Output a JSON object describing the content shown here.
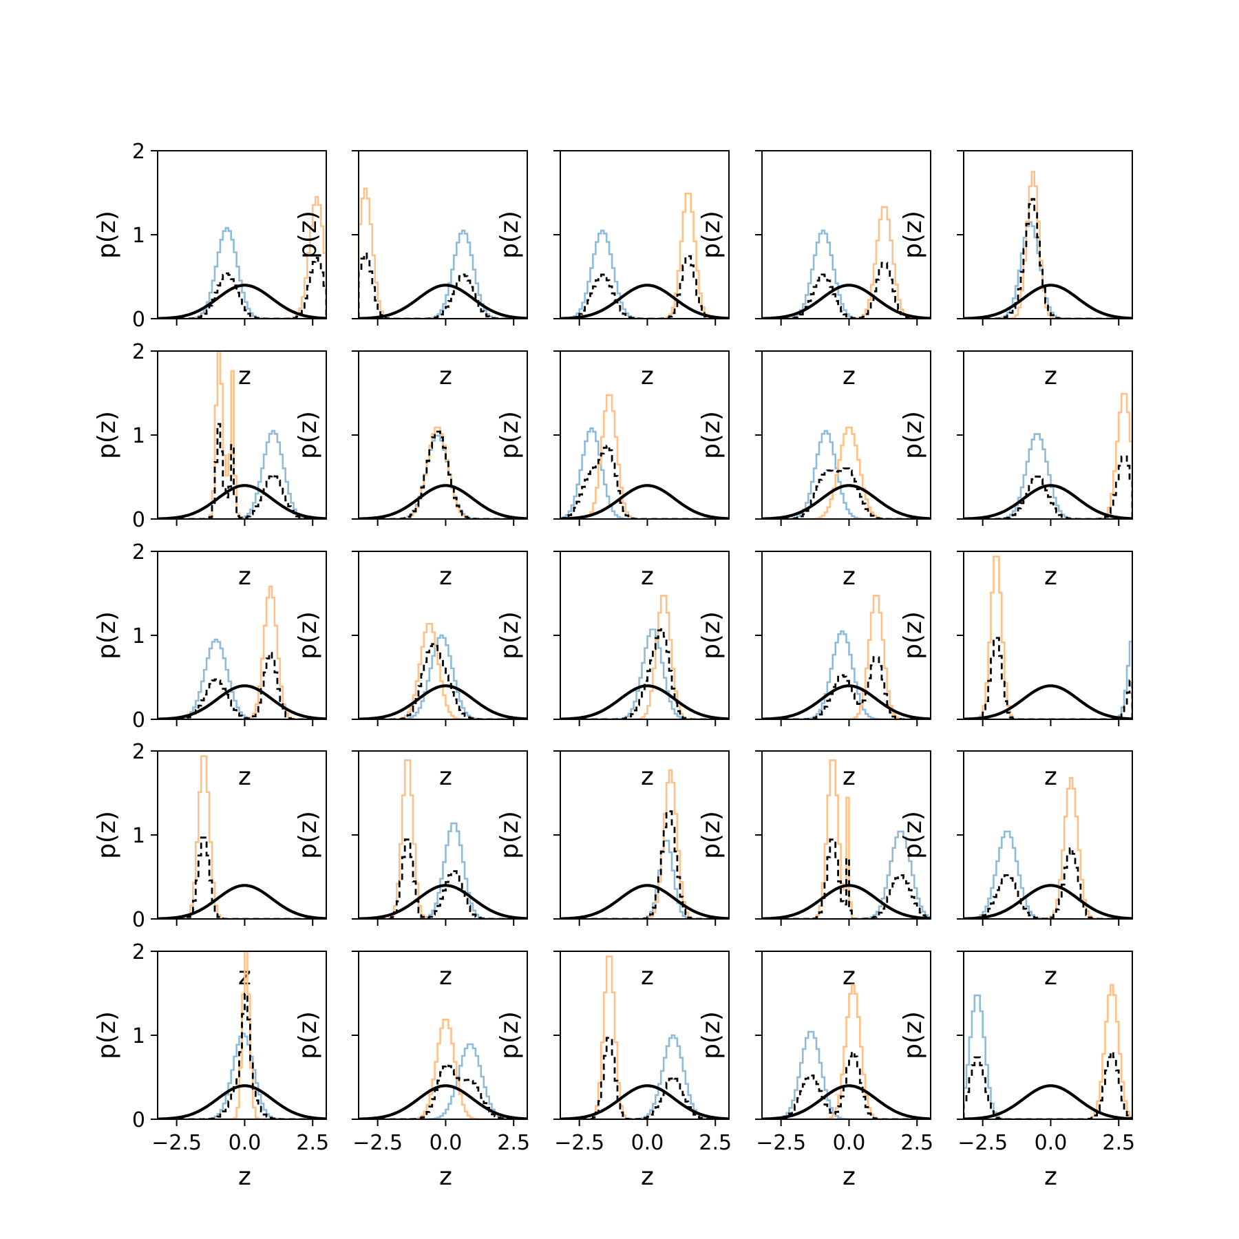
{
  "chart_data": {
    "type": "histogram-grid",
    "rows": 5,
    "cols": 5,
    "xlabel": "z",
    "ylabel": "p(z)",
    "xlim": [
      -3.2,
      3.0
    ],
    "ylim": [
      0,
      2
    ],
    "xticks": [
      -2.5,
      0.0,
      2.5
    ],
    "xtick_labels": [
      "−2.5",
      "0.0",
      "2.5"
    ],
    "yticks": [
      0,
      1,
      2
    ],
    "ytick_labels": [
      "0",
      "1",
      "2"
    ],
    "colors": {
      "blue": "#8fbbd9",
      "orange": "#ffbf86",
      "mix": "#000000",
      "normal": "#000000"
    },
    "series_styles": {
      "blue": "step histogram, light blue",
      "orange": "step histogram, light orange",
      "mix": "dashed black step histogram (average of blue and orange)",
      "normal": "solid black standard normal density"
    },
    "panels": [
      {
        "blue": [
          {
            "mu": -0.65,
            "sd": 0.38,
            "peak": 1.08
          }
        ],
        "orange": [
          {
            "mu": 2.65,
            "sd": 0.27,
            "peak": 1.45
          }
        ]
      },
      {
        "blue": [
          {
            "mu": 0.65,
            "sd": 0.37,
            "peak": 1.05
          }
        ],
        "orange": [
          {
            "mu": -2.95,
            "sd": 0.25,
            "peak": 1.55
          }
        ]
      },
      {
        "blue": [
          {
            "mu": -1.65,
            "sd": 0.38,
            "peak": 1.05
          }
        ],
        "orange": [
          {
            "mu": 1.5,
            "sd": 0.25,
            "peak": 1.52
          }
        ]
      },
      {
        "blue": [
          {
            "mu": -0.95,
            "sd": 0.37,
            "peak": 1.05
          }
        ],
        "orange": [
          {
            "mu": 1.3,
            "sd": 0.29,
            "peak": 1.35
          }
        ]
      },
      {
        "blue": [
          {
            "mu": -0.75,
            "sd": 0.34,
            "peak": 1.15
          }
        ],
        "orange": [
          {
            "mu": -0.65,
            "sd": 0.22,
            "peak": 1.75
          }
        ]
      },
      {
        "blue": [
          {
            "mu": 1.05,
            "sd": 0.38,
            "peak": 1.05
          }
        ],
        "orange": [
          {
            "mu": -0.95,
            "sd": 0.1,
            "peak": 2.0
          },
          {
            "mu": -0.45,
            "sd": 0.06,
            "peak": 1.5
          },
          {
            "mu": -0.7,
            "sd": 0.22,
            "peak": 0.5
          }
        ]
      },
      {
        "blue": [
          {
            "mu": -0.3,
            "sd": 0.4,
            "peak": 1.0
          }
        ],
        "orange": [
          {
            "mu": -0.3,
            "sd": 0.37,
            "peak": 1.1
          }
        ]
      },
      {
        "blue": [
          {
            "mu": -2.05,
            "sd": 0.36,
            "peak": 1.08
          }
        ],
        "orange": [
          {
            "mu": -1.4,
            "sd": 0.27,
            "peak": 1.5
          }
        ]
      },
      {
        "blue": [
          {
            "mu": -0.85,
            "sd": 0.38,
            "peak": 1.05
          }
        ],
        "orange": [
          {
            "mu": 0.0,
            "sd": 0.37,
            "peak": 1.1
          }
        ]
      },
      {
        "blue": [
          {
            "mu": -0.5,
            "sd": 0.39,
            "peak": 1.02
          }
        ],
        "orange": [
          {
            "mu": 2.7,
            "sd": 0.25,
            "peak": 1.52
          }
        ]
      },
      {
        "blue": [
          {
            "mu": -1.05,
            "sd": 0.41,
            "peak": 0.95
          }
        ],
        "orange": [
          {
            "mu": 0.95,
            "sd": 0.24,
            "peak": 1.58
          }
        ]
      },
      {
        "blue": [
          {
            "mu": -0.15,
            "sd": 0.4,
            "peak": 1.0
          }
        ],
        "orange": [
          {
            "mu": -0.6,
            "sd": 0.33,
            "peak": 1.15
          }
        ]
      },
      {
        "blue": [
          {
            "mu": 0.2,
            "sd": 0.36,
            "peak": 1.08
          }
        ],
        "orange": [
          {
            "mu": 0.6,
            "sd": 0.26,
            "peak": 1.5
          }
        ]
      },
      {
        "blue": [
          {
            "mu": -0.25,
            "sd": 0.38,
            "peak": 1.05
          }
        ],
        "orange": [
          {
            "mu": 1.0,
            "sd": 0.26,
            "peak": 1.5
          }
        ]
      },
      {
        "blue": [
          {
            "mu": 3.05,
            "sd": 0.2,
            "peak": 1.05
          }
        ],
        "orange": [
          {
            "mu": -2.0,
            "sd": 0.2,
            "peak": 2.0
          }
        ]
      },
      {
        "blue": [],
        "orange": [
          {
            "mu": -1.5,
            "sd": 0.2,
            "peak": 2.0
          }
        ]
      },
      {
        "blue": [
          {
            "mu": 0.3,
            "sd": 0.34,
            "peak": 1.15
          }
        ],
        "orange": [
          {
            "mu": -1.4,
            "sd": 0.2,
            "peak": 1.95
          }
        ]
      },
      {
        "blue": [
          {
            "mu": 0.7,
            "sd": 0.25,
            "peak": 0.95
          }
        ],
        "orange": [
          {
            "mu": 0.85,
            "sd": 0.24,
            "peak": 1.77
          }
        ]
      },
      {
        "blue": [
          {
            "mu": 1.9,
            "sd": 0.38,
            "peak": 1.05
          }
        ],
        "orange": [
          {
            "mu": -0.6,
            "sd": 0.2,
            "peak": 1.95
          },
          {
            "mu": -0.05,
            "sd": 0.05,
            "peak": 1.4
          }
        ]
      },
      {
        "blue": [
          {
            "mu": -1.6,
            "sd": 0.38,
            "peak": 1.05
          }
        ],
        "orange": [
          {
            "mu": 0.75,
            "sd": 0.25,
            "peak": 1.68
          }
        ]
      },
      {
        "blue": [
          {
            "mu": -0.05,
            "sd": 0.38,
            "peak": 1.02
          }
        ],
        "orange": [
          {
            "mu": 0.05,
            "sd": 0.13,
            "peak": 2.0
          }
        ]
      },
      {
        "blue": [
          {
            "mu": 0.9,
            "sd": 0.42,
            "peak": 0.9
          }
        ],
        "orange": [
          {
            "mu": 0.0,
            "sd": 0.33,
            "peak": 1.2
          }
        ]
      },
      {
        "blue": [
          {
            "mu": 0.95,
            "sd": 0.38,
            "peak": 1.0
          }
        ],
        "orange": [
          {
            "mu": -1.4,
            "sd": 0.2,
            "peak": 2.0
          }
        ]
      },
      {
        "blue": [
          {
            "mu": -1.4,
            "sd": 0.37,
            "peak": 1.05
          }
        ],
        "orange": [
          {
            "mu": 0.15,
            "sd": 0.27,
            "peak": 1.6
          }
        ]
      },
      {
        "blue": [
          {
            "mu": -2.7,
            "sd": 0.27,
            "peak": 1.5
          }
        ],
        "orange": [
          {
            "mu": 2.25,
            "sd": 0.25,
            "peak": 1.6
          }
        ]
      }
    ]
  }
}
